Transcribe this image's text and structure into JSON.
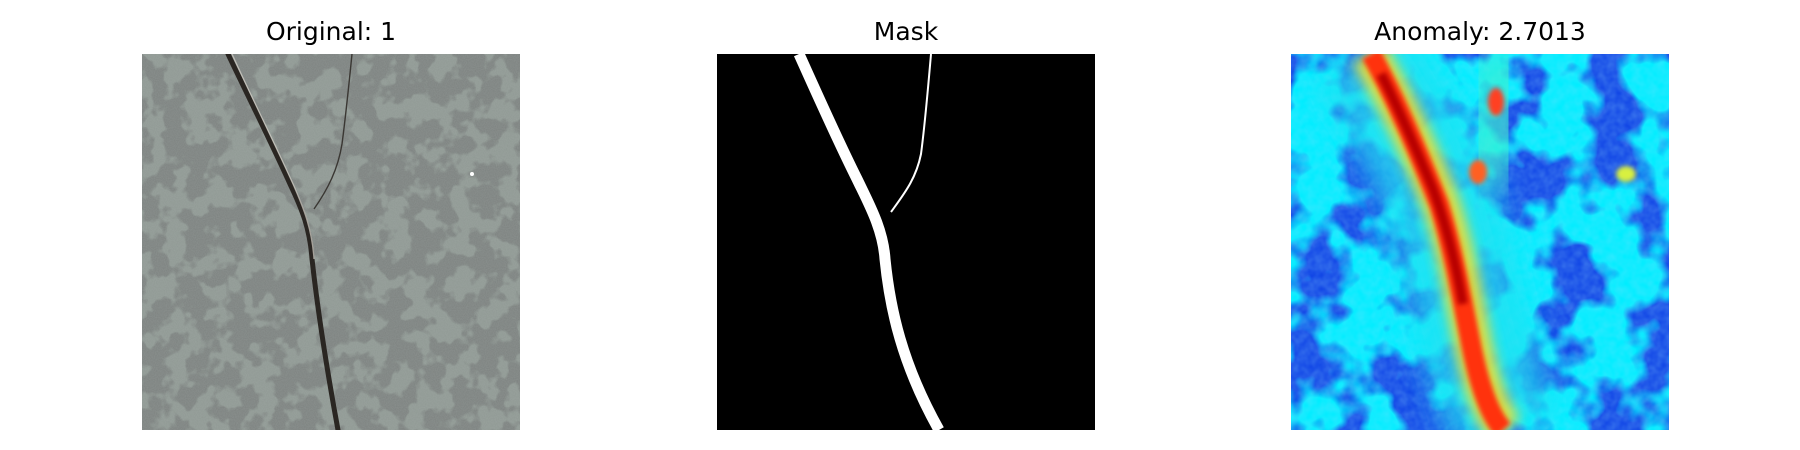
{
  "figure": {
    "panels": [
      {
        "title": "Original: 1",
        "kind": "original-image"
      },
      {
        "title": "Mask",
        "kind": "binary-mask"
      },
      {
        "title": "Anomaly: 2.7013",
        "kind": "anomaly-heatmap"
      }
    ]
  }
}
